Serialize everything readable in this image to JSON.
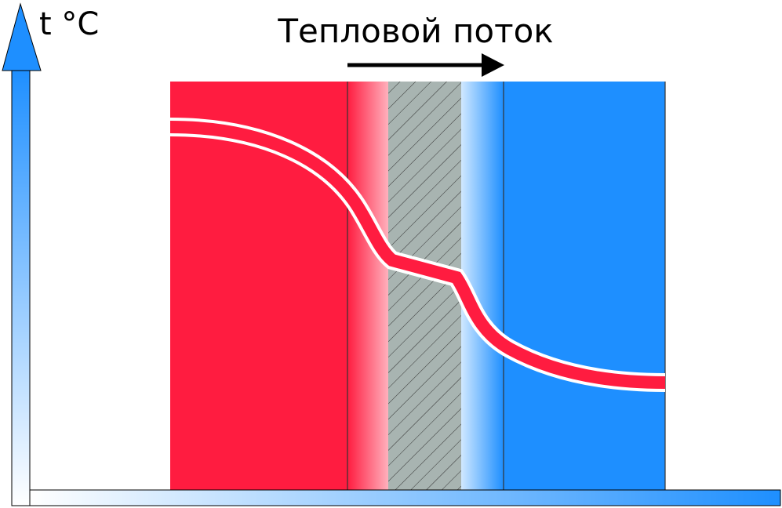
{
  "axis_label": "t °C",
  "heat_flow_label": "Тепловой поток"
}
